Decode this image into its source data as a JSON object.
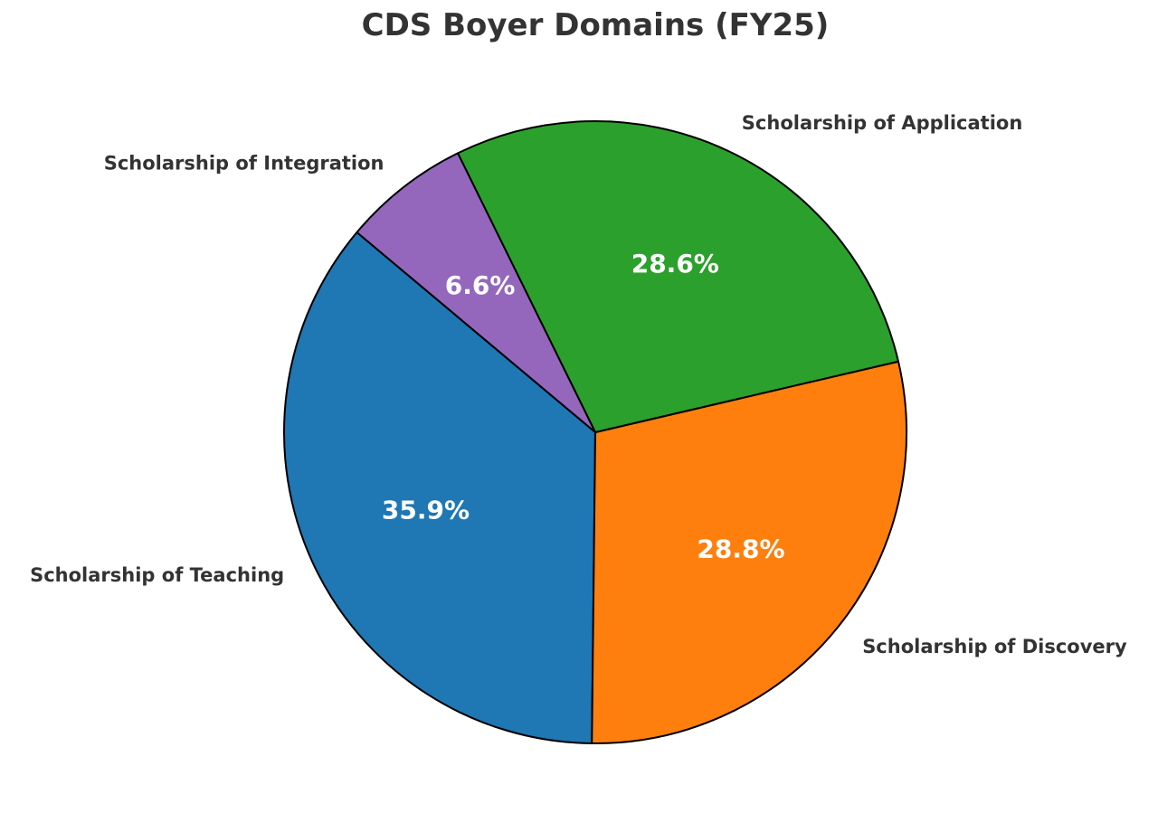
{
  "chart_data": {
    "type": "pie",
    "title": "CDS Boyer Domains (FY25)",
    "slices": [
      {
        "label": "Scholarship of Teaching",
        "value": 35.9,
        "pct_label": "35.9%",
        "color": "#1f77b4"
      },
      {
        "label": "Scholarship of Discovery",
        "value": 28.8,
        "pct_label": "28.8%",
        "color": "#ff7f0e"
      },
      {
        "label": "Scholarship of Application",
        "value": 28.6,
        "pct_label": "28.6%",
        "color": "#2ca02c"
      },
      {
        "label": "Scholarship of Integration",
        "value": 6.6,
        "pct_label": "6.6%",
        "color": "#9467bd"
      }
    ],
    "legend": "none",
    "grid": false
  }
}
